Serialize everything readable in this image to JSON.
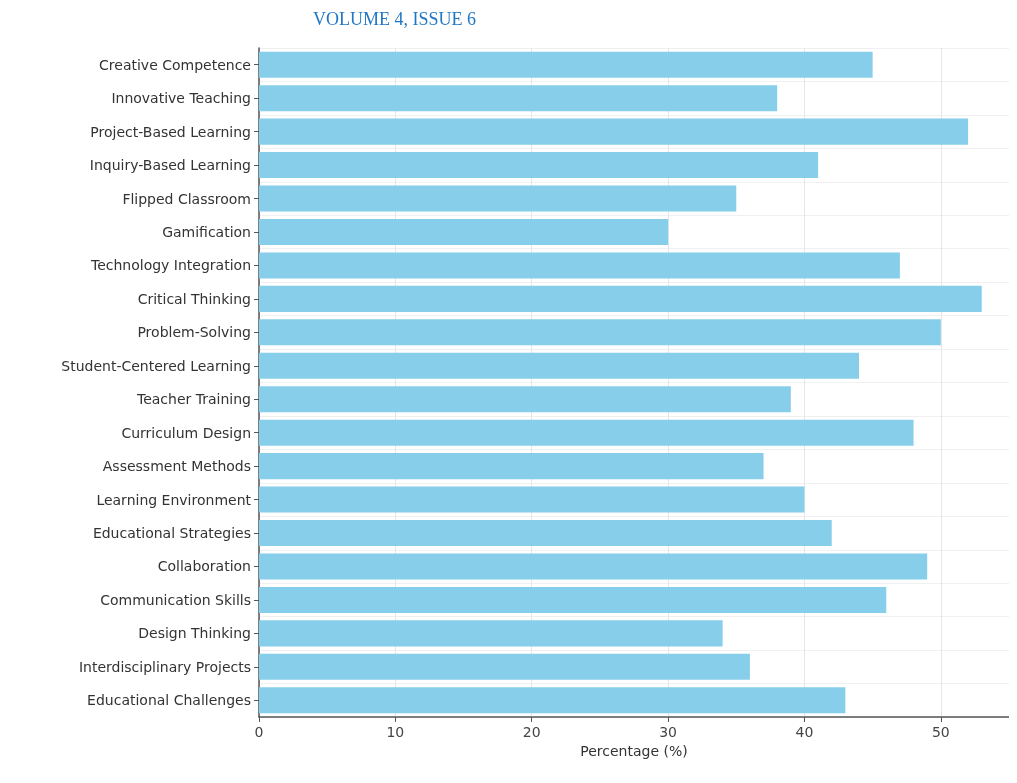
{
  "chart_data": {
    "type": "bar",
    "orientation": "horizontal",
    "annotations": [
      "VOLUME 4, ISSUE 6"
    ],
    "xlabel": "Percentage (%)",
    "categories": [
      "Creative Competence",
      "Innovative Teaching",
      "Project-Based Learning",
      "Inquiry-Based Learning",
      "Flipped Classroom",
      "Gamification",
      "Technology Integration",
      "Critical Thinking",
      "Problem-Solving",
      "Student-Centered Learning",
      "Teacher Training",
      "Curriculum Design",
      "Assessment Methods",
      "Learning Environment",
      "Educational Strategies",
      "Collaboration",
      "Communication Skills",
      "Design Thinking",
      "Interdisciplinary Projects",
      "Educational Challenges"
    ],
    "values": [
      45,
      38,
      52,
      41,
      35,
      30,
      47,
      53,
      50,
      44,
      39,
      48,
      37,
      40,
      42,
      49,
      46,
      34,
      36,
      43
    ],
    "color": "#87ceeb",
    "xlim": [
      0,
      55
    ],
    "xticks": [
      0,
      10,
      20,
      30,
      40,
      50
    ],
    "grid": true
  }
}
